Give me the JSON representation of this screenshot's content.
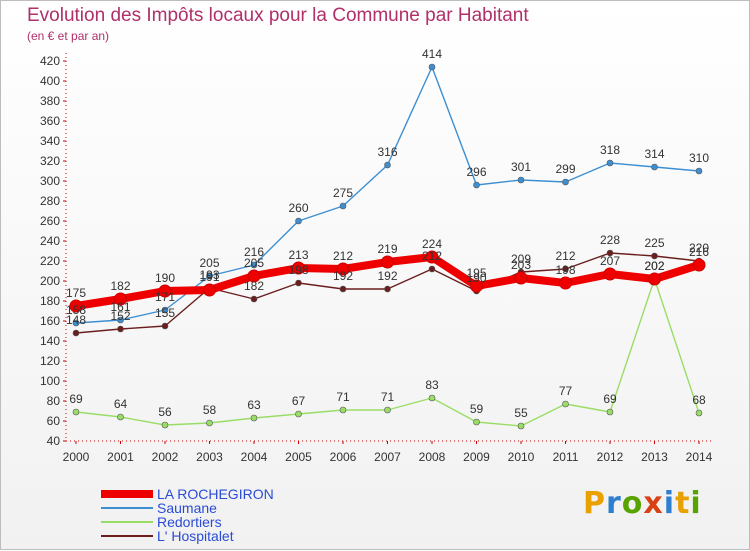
{
  "header": {
    "title": "Evolution des Impôts locaux pour la Commune par Habitant",
    "subtitle": "(en € et par an)"
  },
  "brand": {
    "text": "Proxiti",
    "colors": [
      "#e8a100",
      "#2f7fd0",
      "#59a300",
      "#d94015",
      "#2f7fd0",
      "#e8a100",
      "#59a300"
    ]
  },
  "chart_data": {
    "type": "line",
    "title": "Evolution des Impôts locaux pour la Commune par Habitant",
    "subtitle": "(en € et par an)",
    "xlabel": "",
    "ylabel": "",
    "x": [
      2000,
      2001,
      2002,
      2003,
      2004,
      2005,
      2006,
      2007,
      2008,
      2009,
      2010,
      2011,
      2012,
      2013,
      2014
    ],
    "ylim": [
      40,
      420
    ],
    "yticks": [
      40,
      60,
      80,
      100,
      120,
      140,
      160,
      180,
      200,
      220,
      240,
      260,
      280,
      300,
      320,
      340,
      360,
      380,
      400,
      420
    ],
    "grid": "none",
    "legend_position": "bottom-left",
    "series": [
      {
        "name": "LA ROCHEGIRON",
        "color": "#ee0000",
        "values": [
          175,
          182,
          190,
          191,
          205,
          213,
          212,
          219,
          224,
          195,
          203,
          198,
          207,
          202,
          216
        ],
        "labels": [
          "175",
          "182",
          "190",
          "191",
          "205",
          "213",
          "212",
          "219",
          "224",
          "195",
          "203",
          "198",
          "207",
          "202",
          "216"
        ]
      },
      {
        "name": "Saumane",
        "color": "#3d8fd1",
        "values": [
          158,
          161,
          171,
          205,
          216,
          260,
          275,
          316,
          414,
          296,
          301,
          299,
          318,
          314,
          310
        ],
        "labels": [
          "158",
          "161",
          "171",
          "205",
          "216",
          "260",
          "275",
          "316",
          "414",
          "296",
          "301",
          "299",
          "318",
          "314",
          "310"
        ]
      },
      {
        "name": "Redortiers",
        "color": "#99dd66",
        "values": [
          69,
          64,
          56,
          58,
          63,
          67,
          71,
          71,
          83,
          59,
          55,
          77,
          69,
          202,
          68
        ],
        "labels": [
          "69",
          "64",
          "56",
          "58",
          "63",
          "67",
          "71",
          "71",
          "83",
          "59",
          "55",
          "77",
          "69",
          "202",
          "68"
        ]
      },
      {
        "name": "L' Hospitalet",
        "color": "#6b1e1e",
        "values": [
          148,
          152,
          155,
          193,
          182,
          198,
          192,
          192,
          212,
          190,
          209,
          212,
          228,
          225,
          220
        ],
        "labels": [
          "148",
          "152",
          "155",
          "193",
          "182",
          "198",
          "192",
          "192",
          "212",
          "190",
          "209",
          "212",
          "228",
          "225",
          "220"
        ]
      }
    ]
  }
}
